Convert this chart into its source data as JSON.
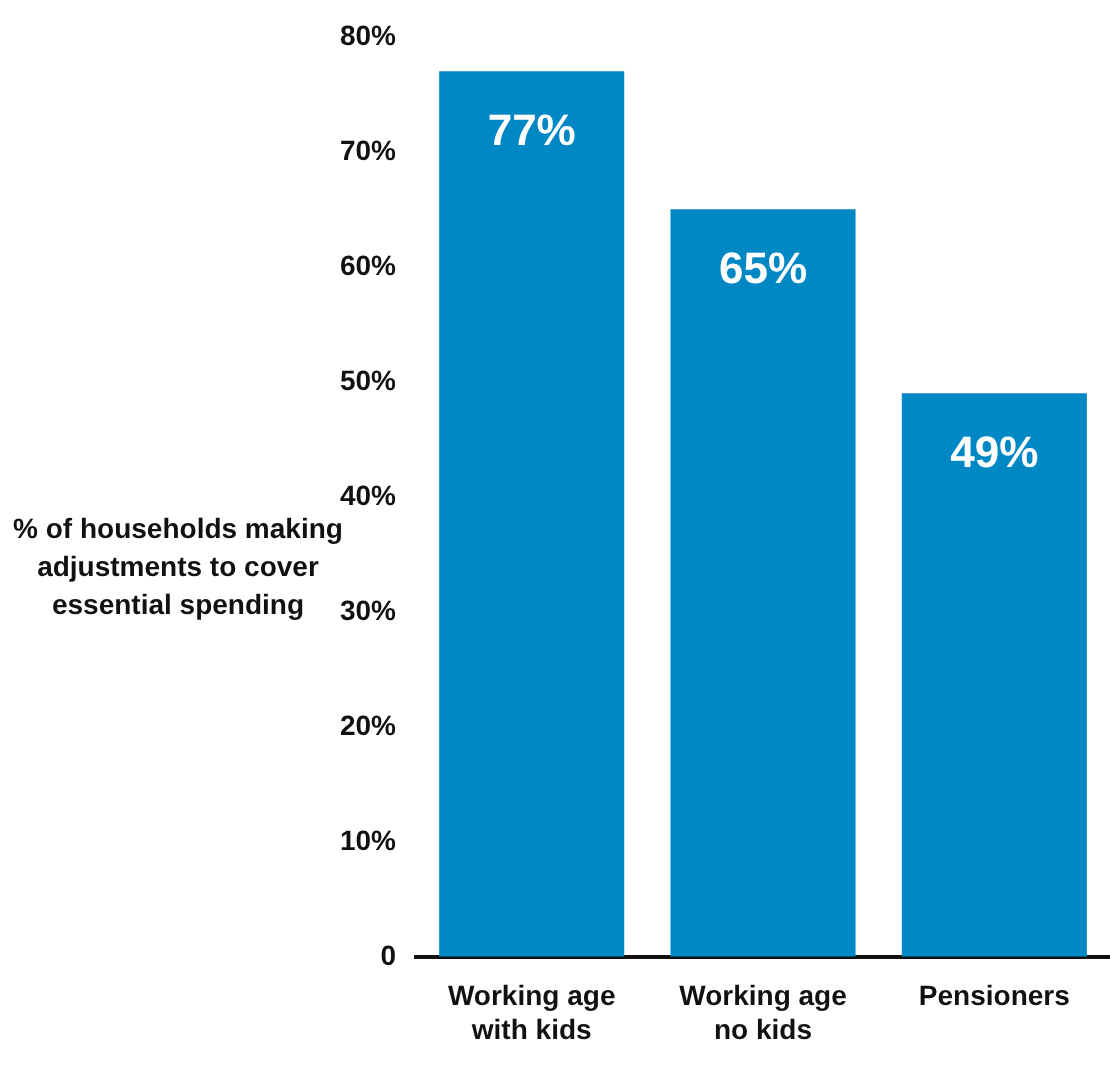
{
  "chart_data": {
    "type": "bar",
    "ylabel": "% of households making adjustments to cover essential spending",
    "categories": [
      "Working age with kids",
      "Working age no kids",
      "Pensioners"
    ],
    "values": [
      77,
      65,
      49
    ],
    "color": "#0088c4",
    "value_labels": [
      "77%",
      "65%",
      "49%"
    ],
    "ylim": [
      0,
      80
    ],
    "yticks": [
      0,
      {
        "value": 10,
        "label": "10%"
      },
      {
        "value": 20,
        "label": "20%"
      },
      {
        "value": 30,
        "label": "30%"
      },
      {
        "value": 40,
        "label": "40%"
      },
      {
        "value": 50,
        "label": "50%"
      },
      {
        "value": 60,
        "label": "60%"
      },
      {
        "value": 70,
        "label": "70%"
      },
      {
        "value": 80,
        "label": "80%"
      }
    ],
    "grid": false,
    "legend": false
  }
}
